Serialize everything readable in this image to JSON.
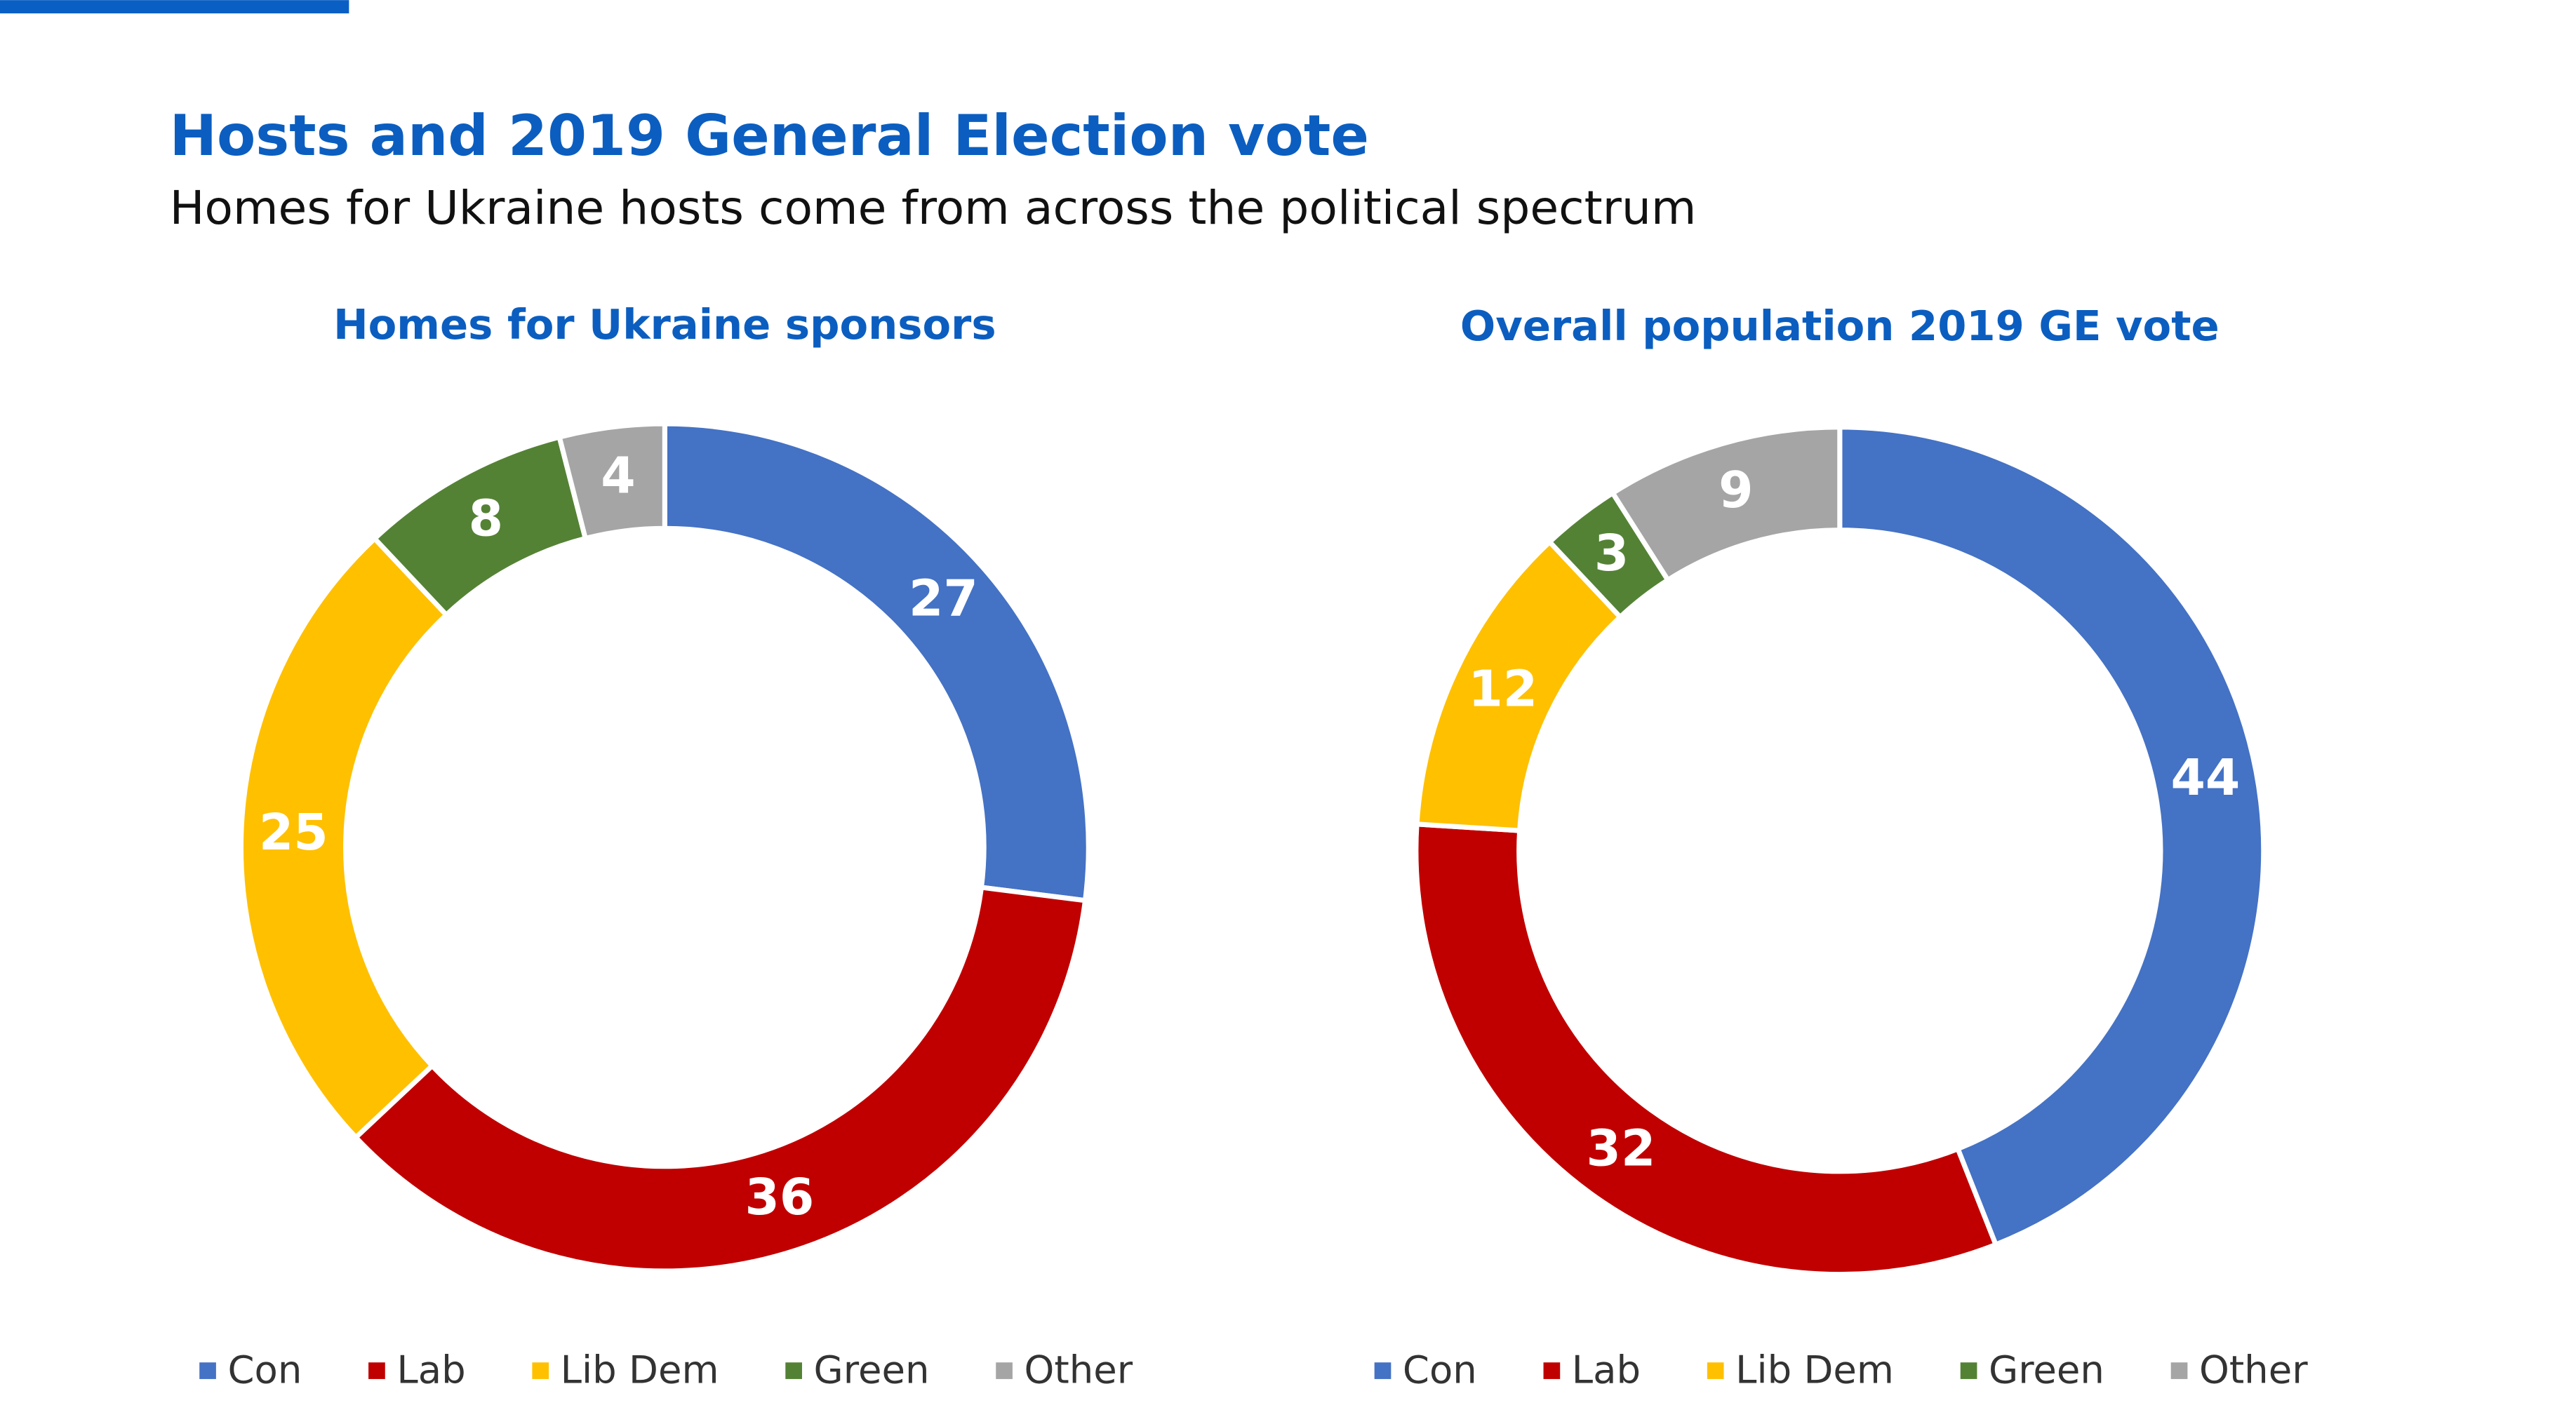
{
  "title": "Hosts and 2019 General Election vote",
  "subtitle": "Homes for Ukraine hosts come from across the political spectrum",
  "chart_data": [
    {
      "type": "donut",
      "title": "Homes for Ukraine sponsors",
      "categories": [
        "Con",
        "Lab",
        "Lib Dem",
        "Green",
        "Other"
      ],
      "values": [
        27,
        36,
        25,
        8,
        4
      ],
      "colors": [
        "#4472c4",
        "#c00000",
        "#ffc000",
        "#548235",
        "#a5a5a5"
      ]
    },
    {
      "type": "donut",
      "title": "Overall population 2019 GE vote",
      "categories": [
        "Con",
        "Lab",
        "Lib Dem",
        "Green",
        "Other"
      ],
      "values": [
        44,
        32,
        12,
        3,
        9
      ],
      "colors": [
        "#4472c4",
        "#c00000",
        "#ffc000",
        "#548235",
        "#a5a5a5"
      ]
    }
  ]
}
